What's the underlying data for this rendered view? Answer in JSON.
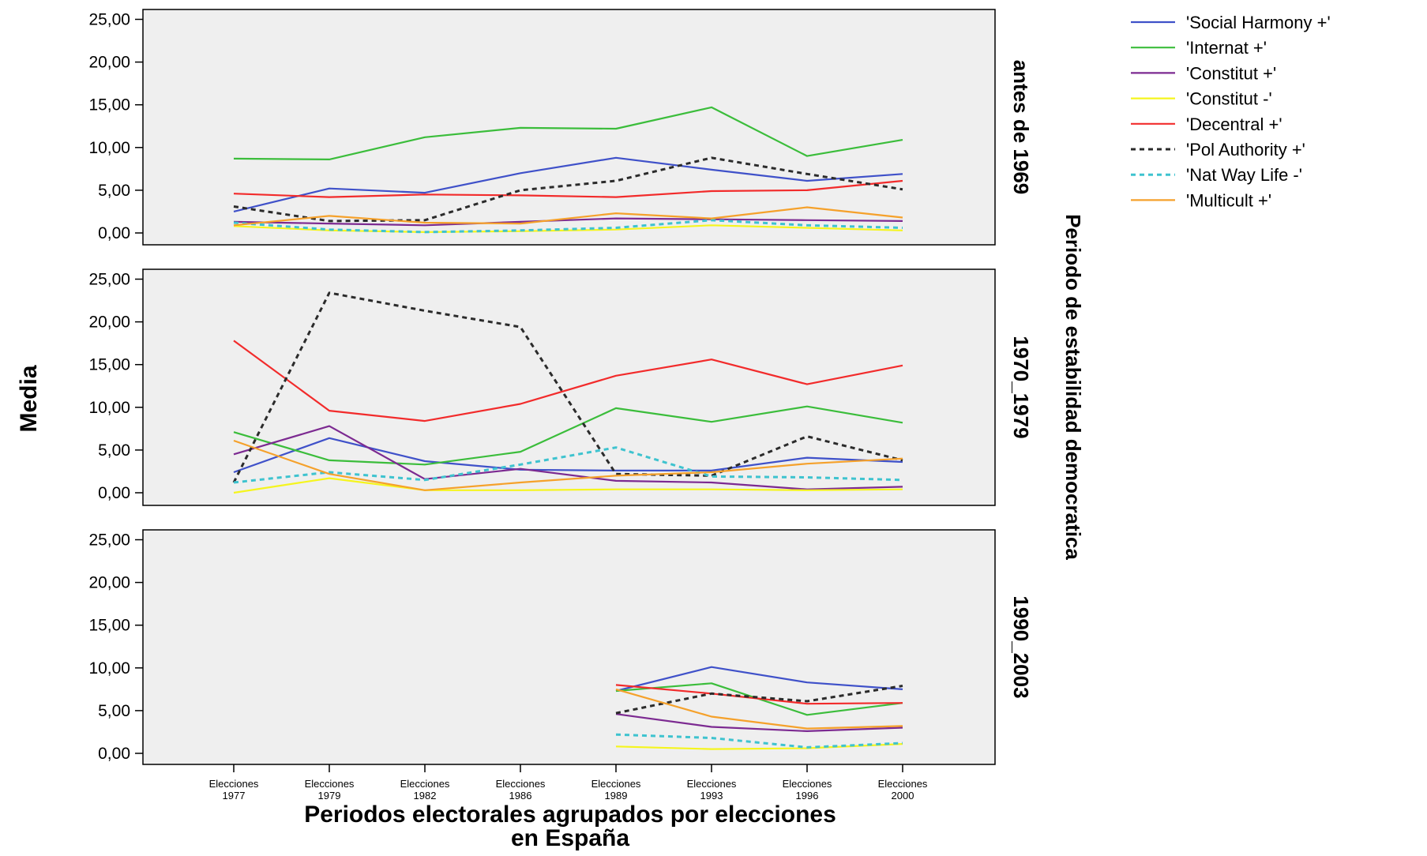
{
  "chart_data": {
    "type": "line",
    "x": [
      "Elecciones 1977",
      "Elecciones 1979",
      "Elecciones 1982",
      "Elecciones 1986",
      "Elecciones 1989",
      "Elecciones 1993",
      "Elecciones 1996",
      "Elecciones 2000"
    ],
    "x_tick_lines": [
      [
        "Elecciones",
        "1977"
      ],
      [
        "Elecciones",
        "1979"
      ],
      [
        "Elecciones",
        "1982"
      ],
      [
        "Elecciones",
        "1986"
      ],
      [
        "Elecciones",
        "1989"
      ],
      [
        "Elecciones",
        "1993"
      ],
      [
        "Elecciones",
        "1996"
      ],
      [
        "Elecciones",
        "2000"
      ]
    ],
    "xlabel": "Periodos electorales agrupados por elecciones en España",
    "xlabel_lines": [
      "Periodos electorales agrupados por elecciones",
      "en España"
    ],
    "ylabel": "Media",
    "facet_title": "Periodo de estabilidad democratica",
    "ylim": [
      0,
      25
    ],
    "yticks": [
      "0,00",
      "5,00",
      "10,00",
      "15,00",
      "20,00",
      "25,00"
    ],
    "ytick_values": [
      0,
      5,
      10,
      15,
      20,
      25
    ],
    "grid": false,
    "legend_position": "top-right",
    "panels": [
      {
        "label": "antes de 1969",
        "series": [
          {
            "name": "'Social Harmony +'",
            "color": "#3f51c9",
            "dash": false,
            "values": [
              2.5,
              5.2,
              4.7,
              7.0,
              8.8,
              7.4,
              6.1,
              6.9
            ]
          },
          {
            "name": "'Internat +'",
            "color": "#3bbd3b",
            "dash": false,
            "values": [
              8.7,
              8.6,
              11.2,
              12.3,
              12.2,
              14.7,
              9.0,
              10.9
            ]
          },
          {
            "name": "'Constitut +'",
            "color": "#7c2a91",
            "dash": false,
            "values": [
              1.3,
              1.1,
              0.9,
              1.3,
              1.7,
              1.6,
              1.5,
              1.4
            ]
          },
          {
            "name": "'Constitut -'",
            "color": "#f5f51e",
            "dash": false,
            "values": [
              0.8,
              0.3,
              0.1,
              0.2,
              0.4,
              0.9,
              0.6,
              0.3
            ]
          },
          {
            "name": "'Decentral +'",
            "color": "#f22b2b",
            "dash": false,
            "values": [
              4.6,
              4.2,
              4.5,
              4.4,
              4.2,
              4.9,
              5.0,
              6.1
            ]
          },
          {
            "name": "'Pol Authority +'",
            "color": "#2b2b2b",
            "dash": true,
            "values": [
              3.1,
              1.4,
              1.5,
              5.0,
              6.1,
              8.8,
              6.9,
              5.1
            ]
          },
          {
            "name": "'Nat Way Life -'",
            "color": "#3ec3cf",
            "dash": true,
            "values": [
              1.2,
              0.4,
              0.1,
              0.3,
              0.6,
              1.5,
              0.9,
              0.6
            ]
          },
          {
            "name": "'Multicult +'",
            "color": "#f5a12b",
            "dash": false,
            "values": [
              0.9,
              2.0,
              1.2,
              1.1,
              2.3,
              1.7,
              3.0,
              1.8
            ]
          }
        ]
      },
      {
        "label": "1970_1979",
        "series": [
          {
            "name": "'Social Harmony +'",
            "color": "#3f51c9",
            "dash": false,
            "values": [
              2.4,
              6.4,
              3.7,
              2.7,
              2.6,
              2.6,
              4.1,
              3.6
            ]
          },
          {
            "name": "'Internat +'",
            "color": "#3bbd3b",
            "dash": false,
            "values": [
              7.1,
              3.8,
              3.3,
              4.8,
              9.9,
              8.3,
              10.1,
              8.2
            ]
          },
          {
            "name": "'Constitut +'",
            "color": "#7c2a91",
            "dash": false,
            "values": [
              4.5,
              7.8,
              1.6,
              2.8,
              1.4,
              1.2,
              0.4,
              0.7
            ]
          },
          {
            "name": "'Constitut -'",
            "color": "#f5f51e",
            "dash": false,
            "values": [
              0.0,
              1.7,
              0.3,
              0.3,
              0.4,
              0.4,
              0.3,
              0.4
            ]
          },
          {
            "name": "'Decentral +'",
            "color": "#f22b2b",
            "dash": false,
            "values": [
              17.8,
              9.6,
              8.4,
              10.4,
              13.7,
              15.6,
              12.7,
              14.9
            ]
          },
          {
            "name": "'Pol Authority +'",
            "color": "#2b2b2b",
            "dash": true,
            "values": [
              1.2,
              23.4,
              21.3,
              19.4,
              2.2,
              2.0,
              6.6,
              3.8
            ]
          },
          {
            "name": "'Nat Way Life -'",
            "color": "#3ec3cf",
            "dash": true,
            "values": [
              1.2,
              2.4,
              1.5,
              3.3,
              5.3,
              1.9,
              1.8,
              1.5
            ]
          },
          {
            "name": "'Multicult +'",
            "color": "#f5a12b",
            "dash": false,
            "values": [
              6.1,
              2.2,
              0.3,
              1.2,
              2.0,
              2.4,
              3.4,
              4.0
            ]
          }
        ]
      },
      {
        "label": "1990_2003",
        "series": [
          {
            "name": "'Social Harmony +'",
            "color": "#3f51c9",
            "dash": false,
            "values": [
              null,
              null,
              null,
              null,
              7.3,
              10.1,
              8.3,
              7.5
            ]
          },
          {
            "name": "'Internat +'",
            "color": "#3bbd3b",
            "dash": false,
            "values": [
              null,
              null,
              null,
              null,
              7.3,
              8.2,
              4.5,
              5.9
            ]
          },
          {
            "name": "'Constitut +'",
            "color": "#7c2a91",
            "dash": false,
            "values": [
              null,
              null,
              null,
              null,
              4.6,
              3.1,
              2.6,
              3.0
            ]
          },
          {
            "name": "'Constitut -'",
            "color": "#f5f51e",
            "dash": false,
            "values": [
              null,
              null,
              null,
              null,
              0.8,
              0.5,
              0.6,
              1.1
            ]
          },
          {
            "name": "'Decentral +'",
            "color": "#f22b2b",
            "dash": false,
            "values": [
              null,
              null,
              null,
              null,
              8.0,
              7.0,
              5.8,
              5.9
            ]
          },
          {
            "name": "'Pol Authority +'",
            "color": "#2b2b2b",
            "dash": true,
            "values": [
              null,
              null,
              null,
              null,
              4.7,
              7.0,
              6.1,
              7.9
            ]
          },
          {
            "name": "'Nat Way Life -'",
            "color": "#3ec3cf",
            "dash": true,
            "values": [
              null,
              null,
              null,
              null,
              2.2,
              1.8,
              0.7,
              1.2
            ]
          },
          {
            "name": "'Multicult +'",
            "color": "#f5a12b",
            "dash": false,
            "values": [
              null,
              null,
              null,
              null,
              7.5,
              4.3,
              2.9,
              3.2
            ]
          }
        ]
      }
    ],
    "legend": [
      {
        "name": "'Social Harmony +'",
        "color": "#3f51c9",
        "dash": false
      },
      {
        "name": "'Internat +'",
        "color": "#3bbd3b",
        "dash": false
      },
      {
        "name": "'Constitut +'",
        "color": "#7c2a91",
        "dash": false
      },
      {
        "name": "'Constitut -'",
        "color": "#f5f51e",
        "dash": false
      },
      {
        "name": "'Decentral +'",
        "color": "#f22b2b",
        "dash": false
      },
      {
        "name": "'Pol Authority +'",
        "color": "#2b2b2b",
        "dash": true
      },
      {
        "name": "'Nat Way Life -'",
        "color": "#3ec3cf",
        "dash": true
      },
      {
        "name": "'Multicult +'",
        "color": "#f5a12b",
        "dash": false
      }
    ],
    "panel_background": "#efefef"
  }
}
